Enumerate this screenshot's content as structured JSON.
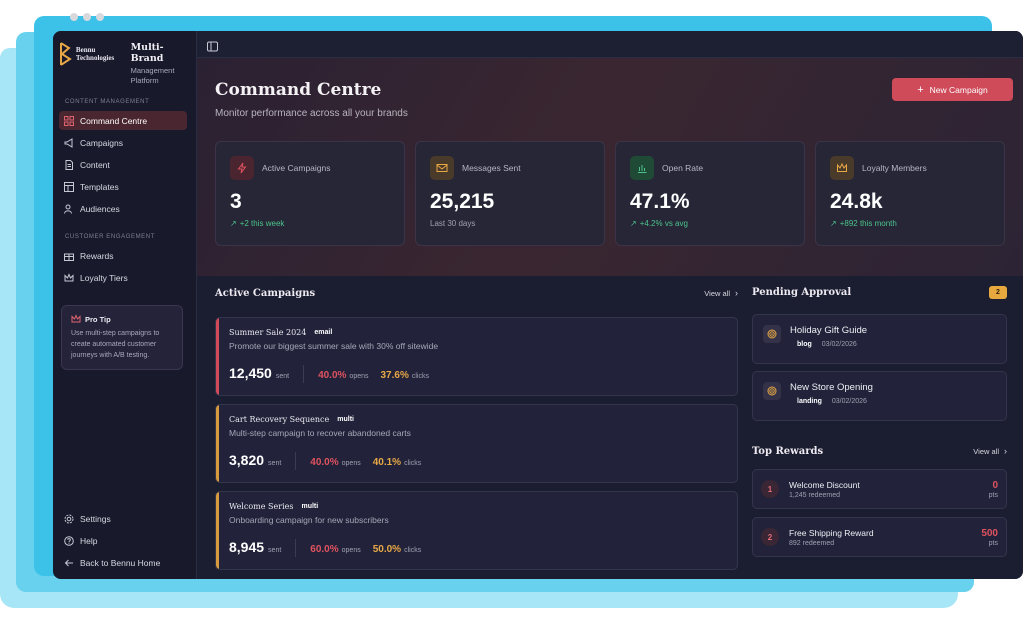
{
  "brand": {
    "logo_text_line1": "Bennu",
    "logo_text_line2": "Technologies",
    "title": "Multi-Brand",
    "subtitle_line1": "Management",
    "subtitle_line2": "Platform"
  },
  "sidebar": {
    "section_content": "CONTENT MANAGEMENT",
    "content_items": [
      {
        "label": "Command Centre",
        "icon": "grid-icon",
        "active": true
      },
      {
        "label": "Campaigns",
        "icon": "megaphone-icon"
      },
      {
        "label": "Content",
        "icon": "document-icon"
      },
      {
        "label": "Templates",
        "icon": "layout-icon"
      },
      {
        "label": "Audiences",
        "icon": "users-icon"
      }
    ],
    "section_engagement": "CUSTOMER ENGAGEMENT",
    "engagement_items": [
      {
        "label": "Rewards",
        "icon": "gift-icon"
      },
      {
        "label": "Loyalty Tiers",
        "icon": "crown-icon"
      }
    ],
    "protip": {
      "title": "Pro Tip",
      "body": "Use multi-step campaigns to create automated customer journeys with A/B testing."
    },
    "bottom_items": [
      {
        "label": "Settings",
        "icon": "gear-icon"
      },
      {
        "label": "Help",
        "icon": "help-icon"
      },
      {
        "label": "Back to Bennu Home",
        "icon": "arrow-left-icon"
      }
    ]
  },
  "header": {
    "title": "Command Centre",
    "subtitle": "Monitor performance across all your brands",
    "new_campaign": "New Campaign"
  },
  "stats": [
    {
      "label": "Active Campaigns",
      "value": "3",
      "sub": "+2 this week",
      "trend": "up",
      "icon": "bolt-icon",
      "color": "#e0525f"
    },
    {
      "label": "Messages Sent",
      "value": "25,215",
      "sub": "Last 30 days",
      "trend": "none",
      "icon": "mail-icon",
      "color": "#e8a845"
    },
    {
      "label": "Open Rate",
      "value": "47.1%",
      "sub": "+4.2% vs avg",
      "trend": "up",
      "icon": "bar-chart-icon",
      "color": "#4cc38a"
    },
    {
      "label": "Loyalty Members",
      "value": "24.8k",
      "sub": "+892 this month",
      "trend": "up",
      "icon": "crown-icon",
      "color": "#e8a845"
    }
  ],
  "active_campaigns": {
    "title": "Active Campaigns",
    "view_all": "View all",
    "items": [
      {
        "name": "Summer Sale 2024",
        "type": "email",
        "desc": "Promote our biggest summer sale with 30% off sitewide",
        "sent": "12,450",
        "sent_label": "sent",
        "opens": "40.0%",
        "opens_label": "opens",
        "clicks": "37.6%",
        "clicks_label": "clicks",
        "accent": "#d2495a"
      },
      {
        "name": "Cart Recovery Sequence",
        "type": "multi",
        "desc": "Multi-step campaign to recover abandoned carts",
        "sent": "3,820",
        "sent_label": "sent",
        "opens": "40.0%",
        "opens_label": "opens",
        "clicks": "40.1%",
        "clicks_label": "clicks",
        "accent": "#d79a3c"
      },
      {
        "name": "Welcome Series",
        "type": "multi",
        "desc": "Onboarding campaign for new subscribers",
        "sent": "8,945",
        "sent_label": "sent",
        "opens": "60.0%",
        "opens_label": "opens",
        "clicks": "50.0%",
        "clicks_label": "clicks",
        "accent": "#d79a3c"
      }
    ]
  },
  "pending": {
    "title": "Pending Approval",
    "count": "2",
    "items": [
      {
        "title": "Holiday Gift Guide",
        "tag": "blog",
        "date": "03/02/2026"
      },
      {
        "title": "New Store Opening",
        "tag": "landing",
        "date": "03/02/2026"
      }
    ]
  },
  "rewards": {
    "title": "Top Rewards",
    "view_all": "View all",
    "items": [
      {
        "rank": "1",
        "name": "Welcome Discount",
        "redeemed": "1,245 redeemed",
        "points": "0",
        "unit": "pts"
      },
      {
        "rank": "2",
        "name": "Free Shipping Reward",
        "redeemed": "892 redeemed",
        "points": "500",
        "unit": "pts"
      }
    ]
  }
}
